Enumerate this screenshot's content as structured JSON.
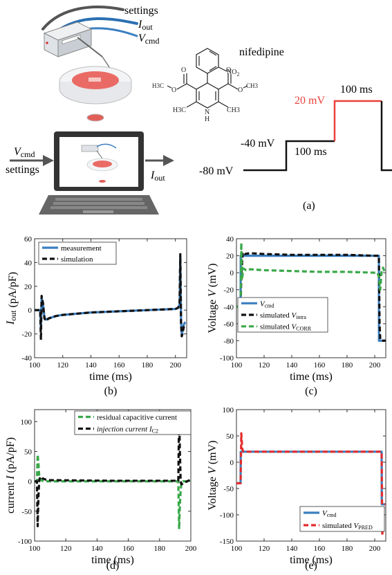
{
  "top": {
    "setup_labels": {
      "settings": "settings",
      "iout_i": "I",
      "iout_sub": "out",
      "vcmd_v": "V",
      "vcmd_sub": "cmd"
    },
    "laptop_labels": {
      "vcmd_v": "V",
      "vcmd_sub": "cmd",
      "settings": "settings",
      "iout_i": "I",
      "iout_sub": "out"
    },
    "drug": {
      "name": "nifedipine",
      "no2": "NO",
      "no2_sub": "2",
      "ch3_left": "H3C",
      "ch3_right": "CH3",
      "nh": "H",
      "n": "N"
    },
    "protocol": {
      "levels": [
        "-80 mV",
        "-40 mV",
        "20 mV"
      ],
      "durations": [
        "100 ms",
        "100 ms"
      ],
      "step_color": "#e8413a"
    },
    "caption": "(a)"
  },
  "chart_data": [
    {
      "type": "line",
      "caption": "(b)",
      "xlabel": "time (ms)",
      "ylabel_i": "I",
      "ylabel_sub": "out",
      "ylabel_rest": " (pA/pF)",
      "xlim": [
        100,
        208
      ],
      "ylim": [
        -40,
        60
      ],
      "xticks": [
        100,
        120,
        140,
        160,
        180,
        200
      ],
      "yticks": [
        -40,
        -20,
        0,
        20,
        40,
        60
      ],
      "legend": "top-left",
      "series": [
        {
          "name": "measurement",
          "color": "#3a7fc1",
          "style": "solid",
          "x": [
            100,
            104,
            104.5,
            105,
            106,
            107,
            108,
            110,
            115,
            120,
            140,
            160,
            180,
            200,
            202,
            203,
            203.5,
            204,
            204.5,
            205,
            206,
            207
          ],
          "y": [
            0,
            0,
            -15,
            10,
            5,
            -6,
            -8,
            -7,
            -5,
            -4,
            -2,
            -1,
            0,
            1,
            2,
            5,
            45,
            -10,
            -20,
            -18,
            -12,
            -10
          ]
        },
        {
          "name": "simulation",
          "color": "#111111",
          "style": "dashed",
          "x": [
            100,
            104,
            104.5,
            105,
            106,
            107,
            108,
            110,
            115,
            120,
            140,
            160,
            180,
            200,
            202,
            203,
            203.5,
            204,
            204.5,
            205,
            206,
            207
          ],
          "y": [
            0,
            0,
            -25,
            12,
            6,
            -7,
            -9,
            -7,
            -5,
            -4,
            -2,
            -1,
            0,
            1,
            2,
            6,
            47,
            -12,
            -22,
            -20,
            -14,
            -12
          ]
        }
      ]
    },
    {
      "type": "line",
      "caption": "(c)",
      "xlabel": "time (ms)",
      "ylabel_pre": "Voltage ",
      "ylabel_i": "V",
      "ylabel_rest": " (mV)",
      "xlim": [
        100,
        208
      ],
      "ylim": [
        -100,
        40
      ],
      "xticks": [
        100,
        120,
        140,
        160,
        180,
        200
      ],
      "yticks": [
        -100,
        -80,
        -60,
        -40,
        -20,
        0,
        20,
        40
      ],
      "legend": "bottom-left",
      "series": [
        {
          "name": "V",
          "name_sub": "cmd",
          "name_pre": "",
          "color": "#3a7fc1",
          "style": "solid",
          "x": [
            100,
            103,
            103.1,
            203,
            203.1,
            208
          ],
          "y": [
            -40,
            -40,
            20,
            20,
            -80,
            -80
          ]
        },
        {
          "name": "V",
          "name_sub": "intra",
          "name_pre": "simulated ",
          "color": "#111111",
          "style": "dashed",
          "x": [
            100,
            103,
            103.5,
            104.5,
            106,
            110,
            120,
            140,
            160,
            180,
            200,
            203,
            203.5,
            204,
            205,
            208
          ],
          "y": [
            -40,
            -40,
            -5,
            24,
            22,
            23,
            22,
            21,
            21,
            21,
            20,
            20,
            -60,
            -78,
            -80,
            -80
          ]
        },
        {
          "name": "V",
          "name_sub": "CORR",
          "name_pre": "simulated ",
          "color": "#3aa84a",
          "style": "dashed",
          "x": [
            100,
            103,
            103.5,
            104,
            105,
            107,
            110,
            120,
            140,
            160,
            180,
            200,
            202,
            203,
            204,
            205,
            206,
            207
          ],
          "y": [
            -40,
            -40,
            35,
            -8,
            5,
            3,
            4,
            3,
            2,
            1,
            1,
            0,
            0,
            -5,
            -20,
            2,
            6,
            2
          ]
        }
      ]
    },
    {
      "type": "line",
      "caption": "(d)",
      "xlabel": "time (ms)",
      "ylabel_pre": "current ",
      "ylabel_i": "I",
      "ylabel_rest": " (pA/pF)",
      "xlim": [
        100,
        200
      ],
      "ylim": [
        -100,
        120
      ],
      "xticks": [
        100,
        120,
        140,
        160,
        180,
        200
      ],
      "yticks": [
        -100,
        -50,
        0,
        50,
        100
      ],
      "legend": "top-right",
      "series": [
        {
          "name": "residual capacitive current",
          "color": "#3aa84a",
          "style": "dashed",
          "x": [
            100,
            101.5,
            102,
            102.5,
            103,
            104,
            106,
            110,
            150,
            190,
            192,
            192.5,
            193,
            193.5,
            194,
            195,
            200
          ],
          "y": [
            0,
            0,
            45,
            30,
            8,
            2,
            0,
            0,
            0,
            0,
            0,
            -80,
            -40,
            -15,
            -3,
            0,
            0
          ]
        },
        {
          "name": "injection current I",
          "name_sub": "C2",
          "color": "#111111",
          "style": "dashed",
          "x": [
            100,
            101.5,
            102,
            102.5,
            103,
            104,
            105,
            108,
            150,
            190,
            192,
            192.5,
            193,
            193.5,
            194,
            196,
            200
          ],
          "y": [
            0,
            0,
            -75,
            -25,
            3,
            8,
            5,
            2,
            1,
            1,
            1,
            115,
            50,
            0,
            -5,
            -2,
            3
          ]
        }
      ]
    },
    {
      "type": "line",
      "caption": "(e)",
      "xlabel": "time (ms)",
      "ylabel_pre": "Voltage ",
      "ylabel_i": "V",
      "ylabel_rest": " (mV)",
      "xlim": [
        100,
        208
      ],
      "ylim": [
        -150,
        100
      ],
      "xticks": [
        100,
        120,
        140,
        160,
        180,
        200
      ],
      "yticks": [
        -150,
        -100,
        -50,
        0,
        50,
        100
      ],
      "legend": "bottom-right",
      "series": [
        {
          "name": "V",
          "name_sub": "cmd",
          "name_pre": "",
          "color": "#3a7fc1",
          "style": "solid",
          "x": [
            100,
            103,
            103.1,
            205,
            205.1,
            208
          ],
          "y": [
            -40,
            -40,
            20,
            20,
            -80,
            -80
          ]
        },
        {
          "name": "V",
          "name_sub": "PRED",
          "name_pre": "simulated ",
          "color": "#e32c2c",
          "style": "dashed",
          "x": [
            100,
            103,
            103.5,
            104.2,
            105,
            110,
            150,
            200,
            205,
            205.5,
            206,
            206.5,
            207,
            208
          ],
          "y": [
            -40,
            -40,
            55,
            25,
            20,
            20,
            20,
            20,
            20,
            -140,
            -100,
            -85,
            -80,
            -80
          ]
        }
      ]
    }
  ]
}
